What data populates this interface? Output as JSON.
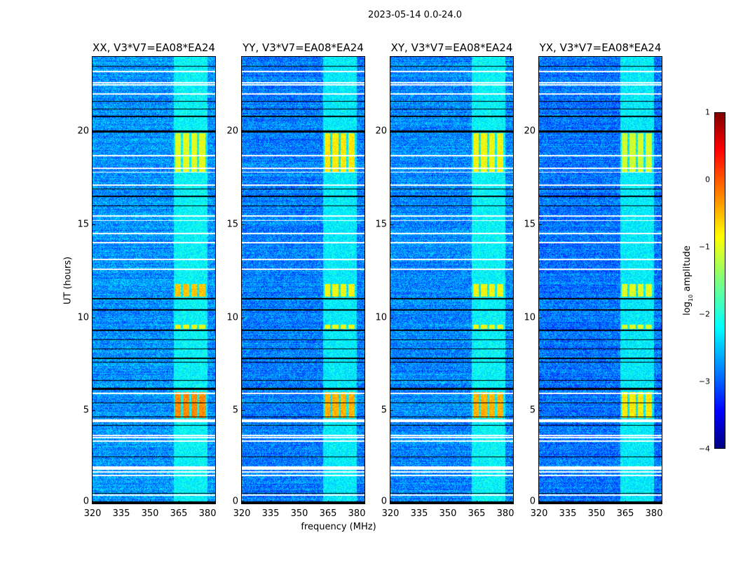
{
  "figure": {
    "title": "2023-05-14 0.0-24.0"
  },
  "chart_data": {
    "type": "heatmap",
    "title": "2023-05-14 0.0-24.0",
    "xlabel": "frequency (MHz)",
    "ylabel": "UT (hours)",
    "xlim": [
      320,
      384
    ],
    "ylim": [
      0,
      24
    ],
    "xticks": [
      "320",
      "335",
      "350",
      "365",
      "380"
    ],
    "yticks": [
      "0",
      "5",
      "10",
      "15",
      "20"
    ],
    "colormap": "jet",
    "colorbar": {
      "label_main": "log",
      "label_sub": "10",
      "label_rest": " amplitude",
      "range": [
        -4,
        1
      ],
      "ticks": [
        "1",
        "0",
        "−1",
        "−2",
        "−3",
        "−4"
      ]
    },
    "panels": [
      {
        "title": "XX, V3*V7=EA08*EA24",
        "background": -2.65,
        "rfi_band": -2.15,
        "bursts": [
          -0.3,
          -0.6,
          -1.0,
          -0.9
        ]
      },
      {
        "title": "YY, V3*V7=EA08*EA24",
        "background": -2.75,
        "rfi_band": -2.2,
        "bursts": [
          -0.5,
          -0.9,
          -0.8,
          -0.9
        ]
      },
      {
        "title": "XY, V3*V7=EA08*EA24",
        "background": -2.7,
        "rfi_band": -2.15,
        "bursts": [
          -0.5,
          -0.9,
          -0.9,
          -0.9
        ]
      },
      {
        "title": "YX, V3*V7=EA08*EA24",
        "background": -2.8,
        "rfi_band": -2.2,
        "bursts": [
          -0.8,
          -1.0,
          -1.1,
          -1.0
        ]
      }
    ],
    "rfi_channels_mhz": [
      [
        363,
        366
      ],
      [
        367,
        370.5
      ],
      [
        371.5,
        374.5
      ],
      [
        375.5,
        379
      ]
    ],
    "burst_times_ut": [
      [
        4.6,
        6.0
      ],
      [
        11.1,
        11.8
      ],
      [
        17.8,
        19.9
      ],
      [
        9.4,
        9.6
      ]
    ],
    "flagged_white_ut": [
      0.45,
      1.5,
      1.7,
      1.9,
      3.35,
      3.55,
      3.65,
      4.45,
      5.9,
      12.6,
      13.1,
      14.0,
      14.5,
      15.2,
      15.45,
      17.1,
      17.8,
      18.0,
      18.7,
      22.0,
      22.5,
      22.6,
      23.2
    ],
    "flagged_black_ut": [
      0.55,
      2.5,
      4.2,
      4.65,
      5.4,
      6.15,
      6.6,
      7.6,
      7.8,
      8.3,
      8.8,
      9.3,
      10.4,
      11.0,
      16.0,
      16.5,
      16.9,
      20.0,
      20.8,
      21.2,
      21.6,
      22.0,
      23.5
    ]
  }
}
